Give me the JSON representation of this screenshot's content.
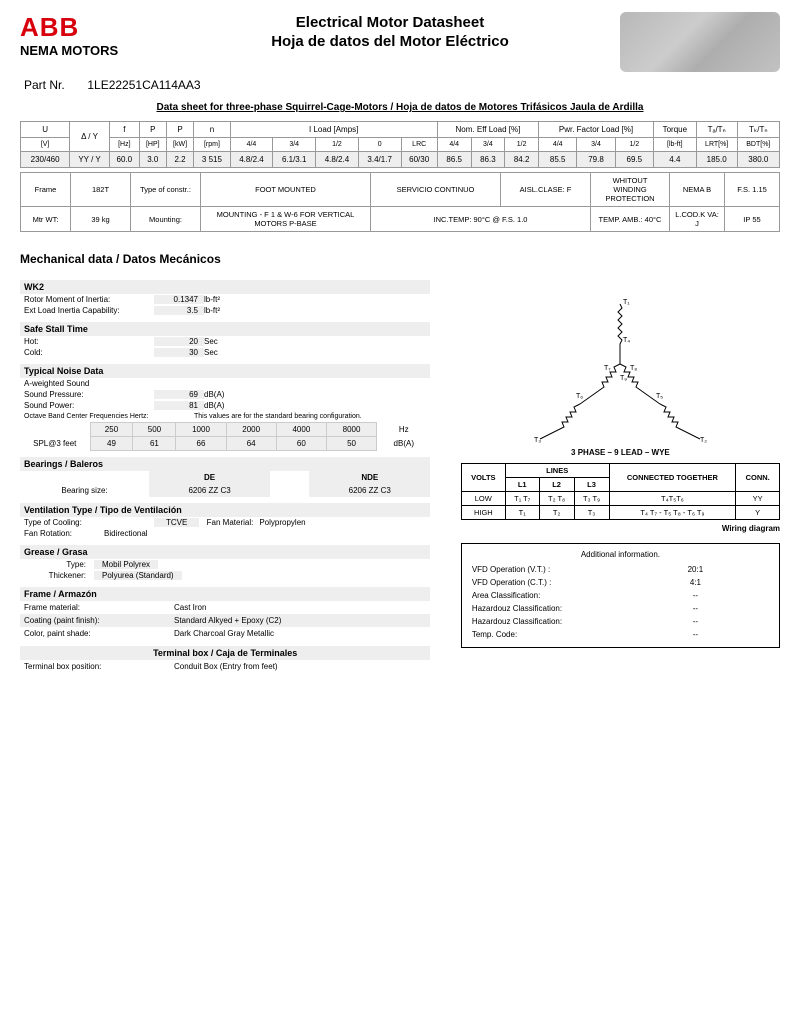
{
  "logo": "ABB",
  "brand": "NEMA MOTORS",
  "title1": "Electrical Motor Datasheet",
  "title2": "Hoja de datos del Motor Eléctrico",
  "part_label": "Part Nr.",
  "part_number": "1LE22251CA114AA3",
  "datasheet_title": "Data sheet for three-phase Squirrel-Cage-Motors / Hoja de datos de Motores Trifásicos Jaula de Ardilla",
  "main_headers_top": [
    "U",
    "Δ / Y",
    "f",
    "P",
    "P",
    "n",
    "I Load [Amps]",
    "Nom. Eff Load [%]",
    "Pwr. Factor Load [%]",
    "Torque",
    "Tₐ/Tₙ",
    "Tₖ/Tₙ"
  ],
  "main_headers_bot": [
    "[V]",
    "",
    "[Hz]",
    "[HP]",
    "[kW]",
    "[rpm]",
    "4/4",
    "3/4",
    "1/2",
    "0",
    "LRC",
    "4/4",
    "3/4",
    "1/2",
    "4/4",
    "3/4",
    "1/2",
    "[lb-ft]",
    "LRT[%]",
    "BDT[%]"
  ],
  "main_row": [
    "230/460",
    "YY / Y",
    "60.0",
    "3.0",
    "2.2",
    "3 515",
    "4.8/2.4",
    "6.1/3.1",
    "4.8/2.4",
    "3.4/1.7",
    "60/30",
    "86.5",
    "86.3",
    "84.2",
    "85.5",
    "79.8",
    "69.5",
    "4.4",
    "185.0",
    "380.0"
  ],
  "info_row1": [
    "Frame",
    "182T",
    "Type of constr.:",
    "FOOT MOUNTED",
    "SERVICIO CONTINUO",
    "AISL.CLASE: F",
    "WHITOUT WINDING PROTECTION",
    "NEMA B",
    "F.S. 1.15"
  ],
  "info_row2": [
    "Mtr WT:",
    "39 kg",
    "Mounting:",
    "MOUNTING - F 1 & W-6 FOR VERTICAL MOTORS P-BASE",
    "INC.TEMP: 90°C @ F.S. 1.0",
    "TEMP. AMB.: 40°C",
    "L.COD.K VA: J",
    "IP 55"
  ],
  "mech_title": "Mechanical data / Datos Mecánicos",
  "wk2_label": "WK2",
  "rotor_inertia_k": "Rotor Moment of Inertia:",
  "rotor_inertia_v": "0.1347",
  "rotor_inertia_u": "lb-ft²",
  "ext_load_k": "Ext Load Inertia Capability:",
  "ext_load_v": "3.5",
  "ext_load_u": "lb-ft²",
  "safe_stall": "Safe Stall Time",
  "hot_k": "Hot:",
  "hot_v": "20",
  "hot_u": "Sec",
  "cold_k": "Cold:",
  "cold_v": "30",
  "cold_u": "Sec",
  "noise_head": "Typical Noise Data",
  "aweighted": "A-weighted Sound",
  "sp_k": "Sound Pressure:",
  "sp_v": "69",
  "sp_u": "dB(A)",
  "spw_k": "Sound Power:",
  "spw_v": "81",
  "spw_u": "dB(A)",
  "oct_label": "Octave Band Center Frequencies Hertz:",
  "oct_note": "This values are for the standard bearing configuration.",
  "oct_freq": [
    "250",
    "500",
    "1000",
    "2000",
    "4000",
    "8000",
    "Hz"
  ],
  "oct_row_label": "SPL@3 feet",
  "oct_vals": [
    "49",
    "61",
    "66",
    "64",
    "60",
    "50",
    "dB(A)"
  ],
  "bearings_head": "Bearings / Baleros",
  "bear_de": "DE",
  "bear_nde": "NDE",
  "bear_size_k": "Bearing size:",
  "bear_de_v": "6206 ZZ C3",
  "bear_nde_v": "6206 ZZ C3",
  "vent_head": "Ventilation Type / Tipo de Ventilación",
  "cooling_k": "Type of Cooling:",
  "cooling_v": "TCVE",
  "fanmat_k": "Fan Material:",
  "fanmat_v": "Polypropylen",
  "fanrot_k": "Fan Rotation:",
  "fanrot_v": "Bidirectional",
  "grease_head": "Grease / Grasa",
  "grease_type_k": "Type:",
  "grease_type_v": "Mobil Polyrex",
  "thick_k": "Thickener:",
  "thick_v": "Polyurea (Standard)",
  "frame_head": "Frame / Armazón",
  "fm_k": "Frame material:",
  "fm_v": "Cast Iron",
  "coat_k": "Coating (paint finish):",
  "coat_v": "Standard Alkyed + Epoxy (C2)",
  "color_k": "Color, paint shade:",
  "color_v": "Dark Charcoal Gray Metallic",
  "tbox_head": "Terminal box / Caja de Terminales",
  "tbox_k": "Terminal box position:",
  "tbox_v": "Conduit Box (Entry from feet)",
  "wye_caption": "3 PHASE – 9 LEAD – WYE",
  "wire_hdr": [
    "VOLTS",
    "LINES",
    "CONNECTED TOGETHER",
    "CONN."
  ],
  "wire_sub": [
    "L1",
    "L2",
    "L3"
  ],
  "wire_low": [
    "LOW",
    "T₁ T₇",
    "T₂ T₈",
    "T₃ T₉",
    "T₄T₅T₆",
    "YY"
  ],
  "wire_high": [
    "HIGH",
    "T₁",
    "T₂",
    "T₃",
    "T₄ T₇ - T₅ T₈ - T₆ T₉",
    "Y"
  ],
  "wiring_label": "Wiring diagram",
  "addl_title": "Additional information.",
  "addl": [
    {
      "k": "VFD Operation (V.T.) :",
      "v": "20:1"
    },
    {
      "k": "VFD Operation (C.T.) :",
      "v": "4:1"
    },
    {
      "k": "Area Classification:",
      "v": "--"
    },
    {
      "k": "Hazardouz Classification:",
      "v": "--"
    },
    {
      "k": "Hazardouz Classification:",
      "v": "--"
    },
    {
      "k": "Temp. Code:",
      "v": "--"
    }
  ]
}
